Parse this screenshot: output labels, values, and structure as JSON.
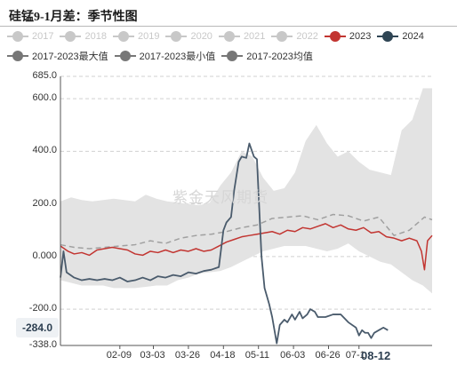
{
  "title": "硅锰9-1月差：季节性图",
  "watermark": "紫金天风期货",
  "current_value_label": "-284.0",
  "current_date_label": "08-12",
  "legend": [
    {
      "label": "2017",
      "color": "#c8c8c8",
      "active": false
    },
    {
      "label": "2018",
      "color": "#c8c8c8",
      "active": false
    },
    {
      "label": "2019",
      "color": "#c8c8c8",
      "active": false
    },
    {
      "label": "2020",
      "color": "#c8c8c8",
      "active": false
    },
    {
      "label": "2021",
      "color": "#c8c8c8",
      "active": false
    },
    {
      "label": "2022",
      "color": "#c8c8c8",
      "active": false
    },
    {
      "label": "2023",
      "color": "#c23531",
      "active": true
    },
    {
      "label": "2024",
      "color": "#2f4554",
      "active": true
    },
    {
      "label": "2017-2023最大值",
      "color": "#777777",
      "active": true
    },
    {
      "label": "2017-2023最小值",
      "color": "#777777",
      "active": true
    },
    {
      "label": "2017-2023均值",
      "color": "#777777",
      "active": true
    }
  ],
  "chart_data": {
    "type": "line",
    "title": "硅锰9-1月差：季节性图",
    "xlabel": "",
    "ylabel": "",
    "ylim": [
      -338.0,
      685.0
    ],
    "y_ticks": [
      "685.0",
      "600.0",
      "400.0",
      "200.0",
      "0.000",
      "-200.0",
      "-338.0"
    ],
    "y_tick_values": [
      685,
      600,
      400,
      200,
      0,
      -200,
      -338
    ],
    "x_ticks": [
      "02-09",
      "03-03",
      "03-26",
      "04-18",
      "05-11",
      "06-03",
      "06-26",
      "07-1"
    ],
    "x_tick_values": [
      40,
      62,
      85,
      108,
      131,
      154,
      177,
      197
    ],
    "xlim": [
      1,
      245
    ],
    "grid": "horizontal",
    "colors": {
      "band": "#e3e3e3",
      "s2023": "#c23531",
      "s2024": "#4a5b6c",
      "mean": "#a0a0a0"
    },
    "band": {
      "name": "2017-2023最大值 / 2017-2023最小值",
      "x": [
        1,
        8,
        15,
        22,
        29,
        36,
        43,
        50,
        57,
        64,
        71,
        78,
        85,
        92,
        99,
        106,
        113,
        120,
        127,
        134,
        141,
        148,
        155,
        162,
        169,
        176,
        183,
        190,
        197,
        204,
        211,
        218,
        225,
        232,
        239,
        245
      ],
      "upper": [
        210,
        225,
        215,
        210,
        215,
        220,
        215,
        210,
        235,
        220,
        210,
        205,
        200,
        195,
        205,
        270,
        320,
        400,
        380,
        300,
        250,
        260,
        320,
        440,
        500,
        430,
        380,
        400,
        360,
        330,
        320,
        310,
        480,
        520,
        640,
        640
      ],
      "lower": [
        -90,
        -100,
        -110,
        -110,
        -110,
        -120,
        -120,
        -120,
        -115,
        -110,
        -110,
        -90,
        -80,
        -65,
        -60,
        -55,
        -40,
        -20,
        0,
        20,
        30,
        40,
        40,
        40,
        30,
        20,
        30,
        50,
        20,
        0,
        -20,
        -30,
        -60,
        -90,
        -110,
        -140
      ]
    },
    "series": [
      {
        "name": "2017-2023均值",
        "style": "dashed",
        "x": [
          1,
          10,
          20,
          30,
          40,
          50,
          60,
          70,
          80,
          90,
          100,
          110,
          120,
          130,
          140,
          150,
          160,
          170,
          180,
          190,
          200,
          210,
          220,
          230,
          240,
          245
        ],
        "y": [
          45,
          35,
          30,
          35,
          40,
          45,
          60,
          50,
          70,
          80,
          85,
          95,
          110,
          120,
          145,
          150,
          155,
          140,
          160,
          155,
          135,
          150,
          80,
          100,
          150,
          140
        ]
      },
      {
        "name": "2023",
        "style": "solid",
        "x": [
          1,
          6,
          10,
          15,
          20,
          25,
          30,
          35,
          40,
          45,
          50,
          55,
          60,
          65,
          70,
          75,
          80,
          85,
          90,
          95,
          100,
          105,
          110,
          115,
          120,
          125,
          130,
          135,
          140,
          145,
          150,
          155,
          160,
          165,
          170,
          175,
          180,
          185,
          190,
          195,
          200,
          205,
          210,
          215,
          220,
          225,
          230,
          235,
          238,
          240,
          242,
          245
        ],
        "y": [
          40,
          20,
          10,
          15,
          5,
          25,
          30,
          35,
          30,
          25,
          10,
          5,
          20,
          15,
          25,
          15,
          25,
          20,
          30,
          20,
          25,
          40,
          55,
          65,
          75,
          80,
          85,
          90,
          95,
          85,
          100,
          95,
          110,
          105,
          115,
          125,
          110,
          120,
          105,
          100,
          110,
          90,
          95,
          75,
          70,
          60,
          70,
          60,
          20,
          -50,
          60,
          80
        ]
      },
      {
        "name": "2024",
        "style": "solid",
        "x": [
          1,
          3,
          5,
          10,
          15,
          20,
          25,
          30,
          35,
          40,
          45,
          50,
          55,
          60,
          65,
          70,
          75,
          80,
          85,
          90,
          95,
          100,
          105,
          108,
          110,
          113,
          115,
          118,
          120,
          123,
          125,
          128,
          130,
          133,
          135,
          138,
          140,
          143,
          145,
          148,
          150,
          153,
          155,
          158,
          160,
          163,
          165,
          168,
          170,
          175,
          180,
          185,
          190,
          195,
          197,
          199,
          201,
          203,
          205,
          207,
          210,
          213,
          216
        ],
        "y": [
          -80,
          20,
          -60,
          -80,
          -90,
          -85,
          -90,
          -85,
          -90,
          -80,
          -95,
          -90,
          -80,
          -90,
          -75,
          -80,
          -70,
          -75,
          -60,
          -65,
          -55,
          -50,
          -40,
          100,
          130,
          150,
          250,
          360,
          380,
          375,
          430,
          380,
          370,
          0,
          -120,
          -180,
          -230,
          -330,
          -260,
          -240,
          -250,
          -220,
          -240,
          -210,
          -235,
          -220,
          -200,
          -210,
          -230,
          -230,
          -220,
          -220,
          -250,
          -270,
          -300,
          -280,
          -290,
          -290,
          -310,
          -290,
          -280,
          -270,
          -280
        ]
      }
    ]
  }
}
